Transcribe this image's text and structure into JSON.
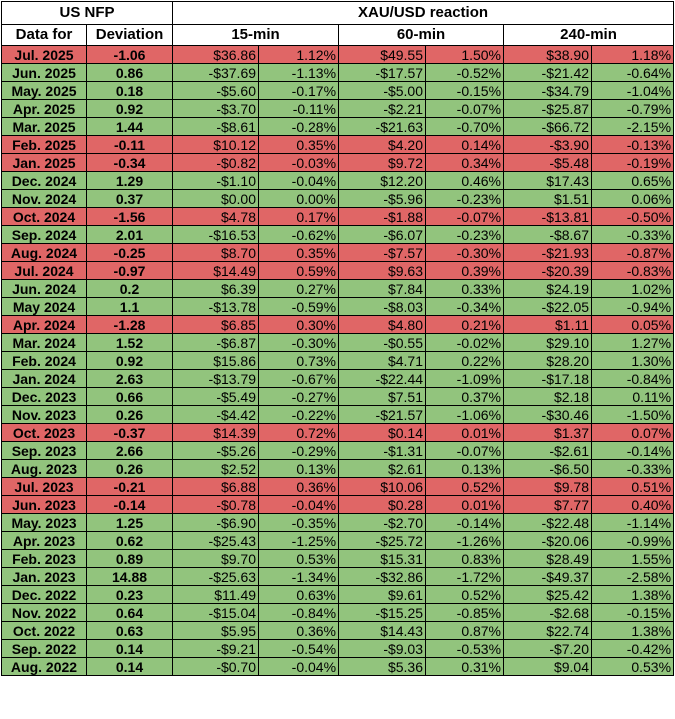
{
  "header": {
    "us_nfp": "US NFP",
    "xau_reaction": "XAU/USD reaction",
    "data_for": "Data for",
    "deviation": "Deviation",
    "m15": "15-min",
    "m60": "60-min",
    "m240": "240-min"
  },
  "colors": {
    "positive": "#92c47d",
    "negative": "#e06666"
  },
  "rows": [
    {
      "date": "Jul. 2025",
      "dev": "-1.06",
      "d15": "$36.86",
      "p15": "1.12%",
      "d60": "$49.55",
      "p60": "1.50%",
      "d240": "$38.90",
      "p240": "1.18%",
      "tone": "red"
    },
    {
      "date": "Jun. 2025",
      "dev": "0.86",
      "d15": "-$37.69",
      "p15": "-1.13%",
      "d60": "-$17.57",
      "p60": "-0.52%",
      "d240": "-$21.42",
      "p240": "-0.64%",
      "tone": "green"
    },
    {
      "date": "May. 2025",
      "dev": "0.18",
      "d15": "-$5.60",
      "p15": "-0.17%",
      "d60": "-$5.00",
      "p60": "-0.15%",
      "d240": "-$34.79",
      "p240": "-1.04%",
      "tone": "green"
    },
    {
      "date": "Apr. 2025",
      "dev": "0.92",
      "d15": "-$3.70",
      "p15": "-0.11%",
      "d60": "-$2.21",
      "p60": "-0.07%",
      "d240": "-$25.87",
      "p240": "-0.79%",
      "tone": "green"
    },
    {
      "date": "Mar. 2025",
      "dev": "1.44",
      "d15": "-$8.61",
      "p15": "-0.28%",
      "d60": "-$21.63",
      "p60": "-0.70%",
      "d240": "-$66.72",
      "p240": "-2.15%",
      "tone": "green"
    },
    {
      "date": "Feb. 2025",
      "dev": "-0.11",
      "d15": "$10.12",
      "p15": "0.35%",
      "d60": "$4.20",
      "p60": "0.14%",
      "d240": "-$3.90",
      "p240": "-0.13%",
      "tone": "red"
    },
    {
      "date": "Jan. 2025",
      "dev": "-0.34",
      "d15": "-$0.82",
      "p15": "-0.03%",
      "d60": "$9.72",
      "p60": "0.34%",
      "d240": "-$5.48",
      "p240": "-0.19%",
      "tone": "red"
    },
    {
      "date": "Dec. 2024",
      "dev": "1.29",
      "d15": "-$1.10",
      "p15": "-0.04%",
      "d60": "$12.20",
      "p60": "0.46%",
      "d240": "$17.43",
      "p240": "0.65%",
      "tone": "green"
    },
    {
      "date": "Nov. 2024",
      "dev": "0.37",
      "d15": "$0.00",
      "p15": "0.00%",
      "d60": "-$5.96",
      "p60": "-0.23%",
      "d240": "$1.51",
      "p240": "0.06%",
      "tone": "green"
    },
    {
      "date": "Oct. 2024",
      "dev": "-1.56",
      "d15": "$4.78",
      "p15": "0.17%",
      "d60": "-$1.88",
      "p60": "-0.07%",
      "d240": "-$13.81",
      "p240": "-0.50%",
      "tone": "red"
    },
    {
      "date": "Sep. 2024",
      "dev": "2.01",
      "d15": "-$16.53",
      "p15": "-0.62%",
      "d60": "-$6.07",
      "p60": "-0.23%",
      "d240": "-$8.67",
      "p240": "-0.33%",
      "tone": "green"
    },
    {
      "date": "Aug. 2024",
      "dev": "-0.25",
      "d15": "$8.70",
      "p15": "0.35%",
      "d60": "-$7.57",
      "p60": "-0.30%",
      "d240": "-$21.93",
      "p240": "-0.87%",
      "tone": "red"
    },
    {
      "date": "Jul. 2024",
      "dev": "-0.97",
      "d15": "$14.49",
      "p15": "0.59%",
      "d60": "$9.63",
      "p60": "0.39%",
      "d240": "-$20.39",
      "p240": "-0.83%",
      "tone": "red"
    },
    {
      "date": "Jun. 2024",
      "dev": "0.2",
      "d15": "$6.39",
      "p15": "0.27%",
      "d60": "$7.84",
      "p60": "0.33%",
      "d240": "$24.19",
      "p240": "1.02%",
      "tone": "green"
    },
    {
      "date": "May 2024",
      "dev": "1.1",
      "d15": "-$13.78",
      "p15": "-0.59%",
      "d60": "-$8.03",
      "p60": "-0.34%",
      "d240": "-$22.05",
      "p240": "-0.94%",
      "tone": "green"
    },
    {
      "date": "Apr. 2024",
      "dev": "-1.28",
      "d15": "$6.85",
      "p15": "0.30%",
      "d60": "$4.80",
      "p60": "0.21%",
      "d240": "$1.11",
      "p240": "0.05%",
      "tone": "red"
    },
    {
      "date": "Mar. 2024",
      "dev": "1.52",
      "d15": "-$6.87",
      "p15": "-0.30%",
      "d60": "-$0.55",
      "p60": "-0.02%",
      "d240": "$29.10",
      "p240": "1.27%",
      "tone": "green"
    },
    {
      "date": "Feb. 2024",
      "dev": "0.92",
      "d15": "$15.86",
      "p15": "0.73%",
      "d60": "$4.71",
      "p60": "0.22%",
      "d240": "$28.20",
      "p240": "1.30%",
      "tone": "green"
    },
    {
      "date": "Jan. 2024",
      "dev": "2.63",
      "d15": "-$13.79",
      "p15": "-0.67%",
      "d60": "-$22.44",
      "p60": "-1.09%",
      "d240": "-$17.18",
      "p240": "-0.84%",
      "tone": "green"
    },
    {
      "date": "Dec. 2023",
      "dev": "0.66",
      "d15": "-$5.49",
      "p15": "-0.27%",
      "d60": "$7.51",
      "p60": "0.37%",
      "d240": "$2.18",
      "p240": "0.11%",
      "tone": "green"
    },
    {
      "date": "Nov. 2023",
      "dev": "0.26",
      "d15": "-$4.42",
      "p15": "-0.22%",
      "d60": "-$21.57",
      "p60": "-1.06%",
      "d240": "-$30.46",
      "p240": "-1.50%",
      "tone": "green"
    },
    {
      "date": "Oct. 2023",
      "dev": "-0.37",
      "d15": "$14.39",
      "p15": "0.72%",
      "d60": "$0.14",
      "p60": "0.01%",
      "d240": "$1.37",
      "p240": "0.07%",
      "tone": "red"
    },
    {
      "date": "Sep. 2023",
      "dev": "2.66",
      "d15": "-$5.26",
      "p15": "-0.29%",
      "d60": "-$1.31",
      "p60": "-0.07%",
      "d240": "-$2.61",
      "p240": "-0.14%",
      "tone": "green"
    },
    {
      "date": "Aug. 2023",
      "dev": "0.26",
      "d15": "$2.52",
      "p15": "0.13%",
      "d60": "$2.61",
      "p60": "0.13%",
      "d240": "-$6.50",
      "p240": "-0.33%",
      "tone": "green"
    },
    {
      "date": "Jul. 2023",
      "dev": "-0.21",
      "d15": "$6.88",
      "p15": "0.36%",
      "d60": "$10.06",
      "p60": "0.52%",
      "d240": "$9.78",
      "p240": "0.51%",
      "tone": "red"
    },
    {
      "date": "Jun. 2023",
      "dev": "-0.14",
      "d15": "-$0.78",
      "p15": "-0.04%",
      "d60": "$0.28",
      "p60": "0.01%",
      "d240": "$7.77",
      "p240": "0.40%",
      "tone": "red"
    },
    {
      "date": "May. 2023",
      "dev": "1.25",
      "d15": "-$6.90",
      "p15": "-0.35%",
      "d60": "-$2.70",
      "p60": "-0.14%",
      "d240": "-$22.48",
      "p240": "-1.14%",
      "tone": "green"
    },
    {
      "date": "Apr. 2023",
      "dev": "0.62",
      "d15": "-$25.43",
      "p15": "-1.25%",
      "d60": "-$25.72",
      "p60": "-1.26%",
      "d240": "-$20.06",
      "p240": "-0.99%",
      "tone": "green"
    },
    {
      "date": "Feb. 2023",
      "dev": "0.89",
      "d15": "$9.70",
      "p15": "0.53%",
      "d60": "$15.31",
      "p60": "0.83%",
      "d240": "$28.49",
      "p240": "1.55%",
      "tone": "green"
    },
    {
      "date": "Jan. 2023",
      "dev": "14.88",
      "d15": "-$25.63",
      "p15": "-1.34%",
      "d60": "-$32.86",
      "p60": "-1.72%",
      "d240": "-$49.37",
      "p240": "-2.58%",
      "tone": "green"
    },
    {
      "date": "Dec. 2022",
      "dev": "0.23",
      "d15": "$11.49",
      "p15": "0.63%",
      "d60": "$9.61",
      "p60": "0.52%",
      "d240": "$25.42",
      "p240": "1.38%",
      "tone": "green"
    },
    {
      "date": "Nov. 2022",
      "dev": "0.64",
      "d15": "-$15.04",
      "p15": "-0.84%",
      "d60": "-$15.25",
      "p60": "-0.85%",
      "d240": "-$2.68",
      "p240": "-0.15%",
      "tone": "green"
    },
    {
      "date": "Oct. 2022",
      "dev": "0.63",
      "d15": "$5.95",
      "p15": "0.36%",
      "d60": "$14.43",
      "p60": "0.87%",
      "d240": "$22.74",
      "p240": "1.38%",
      "tone": "green"
    },
    {
      "date": "Sep. 2022",
      "dev": "0.14",
      "d15": "-$9.21",
      "p15": "-0.54%",
      "d60": "-$9.03",
      "p60": "-0.53%",
      "d240": "-$7.20",
      "p240": "-0.42%",
      "tone": "green"
    },
    {
      "date": "Aug. 2022",
      "dev": "0.14",
      "d15": "-$0.70",
      "p15": "-0.04%",
      "d60": "$5.36",
      "p60": "0.31%",
      "d240": "$9.04",
      "p240": "0.53%",
      "tone": "green"
    }
  ]
}
